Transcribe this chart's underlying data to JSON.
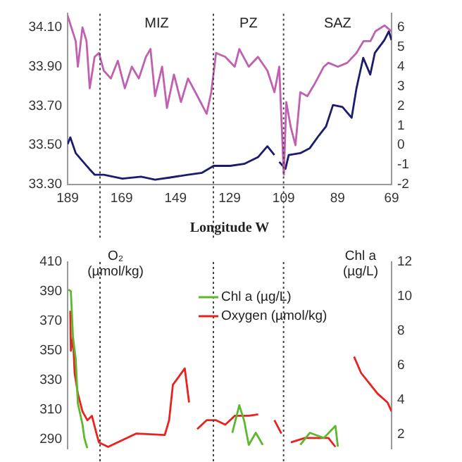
{
  "chart_data": [
    {
      "type": "line",
      "xlabel": "Longitude W",
      "xlim": [
        189,
        69
      ],
      "xticks": [
        189,
        169,
        149,
        129,
        109,
        89,
        69
      ],
      "ylim": [
        33.3,
        34.17
      ],
      "yticks": [
        {
          "value": 33.3,
          "label": "33.30"
        },
        {
          "value": 33.5,
          "label": "33.50"
        },
        {
          "value": 33.7,
          "label": "33.70"
        },
        {
          "value": 33.9,
          "label": "33.90"
        },
        {
          "value": 34.1,
          "label": "34.10"
        }
      ],
      "y2lim": [
        -2,
        6.7
      ],
      "y2ticks": [
        -2,
        -1,
        0,
        1,
        2,
        3,
        4,
        5,
        6
      ],
      "grid": false,
      "legend": false,
      "annotations": [
        "MIZ",
        "PZ",
        "SAZ"
      ],
      "ref_lines": [
        {
          "axis": "x",
          "value": 177,
          "line_style": "dotted",
          "color": "#444444"
        },
        {
          "axis": "x",
          "value": 135,
          "line_style": "dotted",
          "color": "#444444"
        },
        {
          "axis": "x",
          "value": 109,
          "line_style": "dotted",
          "color": "#444444"
        }
      ],
      "series": [
        {
          "color": "#c060b0",
          "x": [
            189,
            186,
            185.2,
            183.5,
            182,
            180.8,
            179,
            177.4,
            175.6,
            173,
            170.4,
            167.8,
            165.2,
            162.6,
            160,
            158.3,
            156.6,
            154,
            152.2,
            149.6,
            147,
            144.4,
            140.9,
            137.5,
            135.8,
            134,
            130.6,
            127.1,
            125.4,
            121.9,
            118.5,
            115,
            112.4,
            110.6,
            109.8,
            108.9,
            108,
            106.3,
            104.6,
            102.8,
            100.2,
            97.6,
            94.1,
            92.4,
            88.9,
            85.4,
            82,
            79.4,
            76.8,
            75,
            71.6,
            69
          ],
          "values": [
            34.16,
            34.03,
            33.9,
            34.1,
            34.03,
            33.79,
            33.95,
            33.97,
            33.88,
            33.84,
            33.93,
            33.79,
            33.9,
            33.84,
            33.95,
            33.99,
            33.75,
            33.9,
            33.69,
            33.86,
            33.72,
            33.84,
            33.75,
            33.66,
            33.77,
            33.97,
            33.95,
            33.9,
            33.99,
            33.9,
            33.95,
            33.88,
            33.77,
            33.9,
            33.63,
            33.35,
            33.72,
            33.59,
            33.5,
            33.77,
            33.75,
            33.81,
            33.9,
            33.92,
            33.9,
            33.92,
            33.97,
            34.03,
            34.03,
            34.08,
            34.11,
            34.08
          ]
        },
        {
          "color": "#1c1c6e",
          "axis": "y2",
          "x": [
            189,
            188,
            186,
            183.5,
            181,
            179,
            175.6,
            168.7,
            161.8,
            156.6,
            151.4,
            144.4,
            139.2,
            134.9,
            128.8,
            123.6,
            118.4,
            115,
            112.4,
            111.5,
            110.6,
            108.3,
            107.1,
            102.8,
            99.3,
            95.9,
            93.3,
            90.7,
            87.2,
            83.8,
            82,
            79.5,
            76.9,
            75.2,
            71.7,
            70,
            69
          ],
          "values": [
            0.05,
            0.4,
            -0.4,
            -0.8,
            -1.2,
            -1.5,
            -1.5,
            -1.7,
            -1.6,
            -1.75,
            -1.65,
            -1.5,
            -1.4,
            -1.05,
            -1.05,
            -0.95,
            -0.6,
            -0.05,
            -0.5,
            null,
            -0.85,
            -1.2,
            -0.5,
            -0.4,
            -0.15,
            0.5,
            0.95,
            2.05,
            1.95,
            1.4,
            2.9,
            4.45,
            3.6,
            4.7,
            5.35,
            5.8,
            5.35
          ]
        }
      ]
    },
    {
      "type": "line",
      "ylabel": "O₂ (µmol/kg)",
      "y2label": "Chl a (µg/L)",
      "xlim": [
        189,
        69
      ],
      "tick_labels": "y",
      "ylim": [
        284,
        410
      ],
      "yticks": [
        290,
        310,
        330,
        350,
        370,
        390,
        410
      ],
      "y2lim": [
        1.2,
        12
      ],
      "y2ticks": [
        2,
        4,
        6,
        8,
        10,
        12
      ],
      "grid": false,
      "legend": "top",
      "ref_lines": [
        {
          "axis": "x",
          "value": 177,
          "line_style": "dotted",
          "color": "#444444"
        },
        {
          "axis": "x",
          "value": 135,
          "line_style": "dotted",
          "color": "#444444"
        },
        {
          "axis": "x",
          "value": 109,
          "line_style": "dotted",
          "color": "#444444"
        }
      ],
      "series": [
        {
          "name": "Chl a (µg/L)",
          "color": "#5cb82c",
          "axis": "y2",
          "x": [
            188.7,
            187.8,
            187,
            186,
            185.2,
            183.5,
            182.8,
            181.7,
            150,
            128,
            125.4,
            123.6,
            121.9,
            119.3,
            116.7,
            110,
            102.8,
            99.3,
            94.1,
            89.8,
            88.9
          ],
          "values": [
            10.4,
            10.3,
            7.6,
            6.4,
            3.8,
            2.6,
            1.8,
            1.2,
            null,
            2.1,
            3.7,
            2.8,
            1.4,
            2.1,
            1.4,
            null,
            1.4,
            2.1,
            1.8,
            2.5,
            1.3
          ]
        },
        {
          "name": "Oxygen (µmol/kg)",
          "color": "#e8231e",
          "x": [
            188,
            187.8,
            187,
            186.4,
            185.2,
            183.5,
            181.7,
            180,
            178.3,
            177.4,
            174,
            163.5,
            153,
            151.4,
            150,
            148,
            145.6,
            144,
            142.5,
            141,
            137.5,
            134,
            130.6,
            127.1,
            121.9,
            118.4,
            115,
            112.4,
            109.8,
            108,
            106.3,
            101.1,
            92.4,
            89.8,
            86,
            82.9,
            80.3,
            76.8,
            74.2,
            70.5,
            69
          ],
          "values": [
            377,
            350,
            359,
            335,
            321,
            309,
            303,
            306,
            294,
            288,
            285,
            294,
            293,
            303,
            327,
            332,
            338,
            315,
            null,
            297,
            303,
            303,
            300,
            306,
            306,
            307,
            null,
            303,
            294,
            null,
            288,
            291,
            291,
            285,
            null,
            346,
            335,
            327,
            321,
            315,
            309
          ]
        }
      ]
    }
  ]
}
